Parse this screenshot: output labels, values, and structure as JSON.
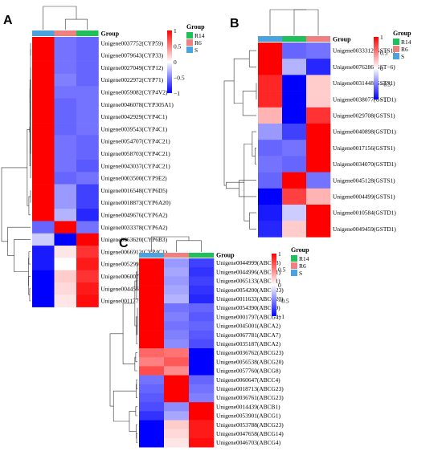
{
  "legend_title": "Group",
  "groups": [
    {
      "name": "R14",
      "color": "#1fbf5a"
    },
    {
      "name": "R6",
      "color": "#f08080"
    },
    {
      "name": "S",
      "color": "#4aa3df"
    }
  ],
  "colorbar": {
    "ticks": [
      "1",
      "0.5",
      "0",
      "−0.5",
      "−1"
    ],
    "max": 1,
    "min": -1,
    "high_color": "#ff0000",
    "mid_color": "#ffffff",
    "low_color": "#0000ff"
  },
  "chart_data": [
    {
      "type": "heatmap",
      "panel": "A",
      "columns": [
        "S",
        "R6",
        "R14"
      ],
      "rows": [
        "Unigene0037752(CYP59)",
        "Unigene0079643(CYP33)",
        "Unigene0027049(CYP12)",
        "Unigene0022972(CYP71)",
        "Unigene0059082(CYP4V2)",
        "Unigene0046078(CYP305A1)",
        "Unigene0042929(CYP4C1)",
        "Unigene0039543(CYP4C1)",
        "Unigene0054707(CYP4C21)",
        "Unigene0058703(CYP4C21)",
        "Unigene0043037(CYP4C21)",
        "Unigene0003500(CYP9E2)",
        "Unigene0016548(CYP6D5)",
        "Unigene0018873(CYP6A20)",
        "Unigene0049676(CYP6A2)",
        "Unigene0033378(CYP6A2)",
        "Unigene0063620(CYP6B3)",
        "Unigene0066912(CYP4C1)",
        "Unigene0052991(CYP6A14)",
        "Unigene0060071(CYP315A1)",
        "Unigene0044560(CYP6A13)",
        "Unigene0011777(CYP4C1)"
      ],
      "values": [
        [
          1.15,
          -0.55,
          -0.6
        ],
        [
          1.15,
          -0.55,
          -0.6
        ],
        [
          1.15,
          -0.55,
          -0.6
        ],
        [
          1.15,
          -0.5,
          -0.6
        ],
        [
          1.15,
          -0.55,
          -0.55
        ],
        [
          1.15,
          -0.6,
          -0.55
        ],
        [
          1.15,
          -0.6,
          -0.55
        ],
        [
          1.15,
          -0.6,
          -0.55
        ],
        [
          1.15,
          -0.55,
          -0.6
        ],
        [
          1.15,
          -0.55,
          -0.6
        ],
        [
          1.15,
          -0.55,
          -0.65
        ],
        [
          1.15,
          -0.6,
          -0.55
        ],
        [
          1.15,
          -0.4,
          -0.75
        ],
        [
          1.15,
          -0.4,
          -0.75
        ],
        [
          1.15,
          -0.3,
          -0.85
        ],
        [
          -0.6,
          1.15,
          -0.55
        ],
        [
          -0.2,
          -1.0,
          1.2
        ],
        [
          -0.9,
          0.1,
          0.8
        ],
        [
          -0.9,
          0.0,
          0.9
        ],
        [
          -1.0,
          0.2,
          0.8
        ],
        [
          -1.05,
          0.15,
          0.9
        ],
        [
          -1.05,
          0.1,
          0.95
        ]
      ]
    },
    {
      "type": "heatmap",
      "panel": "B",
      "columns": [
        "S",
        "R14",
        "R6"
      ],
      "rows": [
        "Unigene0033312(GSTS1)",
        "Unigene0076286(GST−6)",
        "Unigene0031448(GSTS1)",
        "Unigene0038077(GSTD1)",
        "Unigene0029708(GSTS1)",
        "Unigene0040898(GSTD1)",
        "Unigene0017156(GSTS1)",
        "Unigene0034070(GSTD1)",
        "Unigene0045128(GSTS1)",
        "Unigene0004499(GSTS1)",
        "Unigene0010584(GSTD1)",
        "Unigene0049459(GSTD1)"
      ],
      "values": [
        [
          1.15,
          -0.6,
          -0.55
        ],
        [
          1.15,
          -0.3,
          -0.85
        ],
        [
          0.85,
          -1.05,
          0.2
        ],
        [
          0.85,
          -1.05,
          0.2
        ],
        [
          0.3,
          -1.1,
          0.8
        ],
        [
          -0.4,
          -0.75,
          1.15
        ],
        [
          -0.6,
          -0.55,
          1.15
        ],
        [
          -0.55,
          -0.6,
          1.15
        ],
        [
          -0.6,
          1.15,
          -0.55
        ],
        [
          -1.05,
          0.75,
          0.3
        ],
        [
          -0.9,
          -0.2,
          1.1
        ],
        [
          -0.85,
          0.2,
          1.0
        ]
      ]
    },
    {
      "type": "heatmap",
      "panel": "C",
      "columns": [
        "S",
        "R6",
        "R14"
      ],
      "rows": [
        "Unigene0044999(ABCA3)",
        "Unigene0044996(ABCA1)",
        "Unigene0065133(ABCB1)",
        "Unigene0054200(ABCG23)",
        "Unigene0011633(ABCG20)",
        "Unigene0054390(ABCC9)",
        "Unigene0001797(ABCG4)",
        "Unigene0045001(ABCA2)",
        "Unigene0067781(ABCA7)",
        "Unigene0035187(ABCA2)",
        "Unigene0036762(ABCG23)",
        "Unigene0056538(ABCG20)",
        "Unigene0057760(ABCG8)",
        "Unigene0060647(ABCC4)",
        "Unigene0018713(ABCG23)",
        "Unigene0036761(ABCG23)",
        "Unigene0014439(ABCB1)",
        "Unigene0053901(ABCG1)",
        "Unigene0053788(ABCG23)",
        "Unigene0047658(ABCG14)",
        "Unigene0046703(ABCG4)"
      ],
      "values": [
        [
          1.15,
          -0.4,
          -0.75
        ],
        [
          1.15,
          -0.35,
          -0.8
        ],
        [
          1.15,
          -0.4,
          -0.75
        ],
        [
          1.15,
          -0.35,
          -0.8
        ],
        [
          1.15,
          -0.3,
          -0.85
        ],
        [
          1.15,
          -0.55,
          -0.6
        ],
        [
          1.15,
          -0.5,
          -0.65
        ],
        [
          1.15,
          -0.55,
          -0.6
        ],
        [
          1.15,
          -0.5,
          -0.65
        ],
        [
          1.15,
          -0.45,
          -0.7
        ],
        [
          0.6,
          0.55,
          -1.15
        ],
        [
          0.5,
          0.65,
          -1.15
        ],
        [
          0.7,
          0.45,
          -1.15
        ],
        [
          -0.55,
          1.15,
          -0.6
        ],
        [
          -0.6,
          1.15,
          -0.55
        ],
        [
          -0.65,
          1.15,
          -0.5
        ],
        [
          -0.7,
          -0.45,
          1.15
        ],
        [
          -0.8,
          -0.35,
          1.15
        ],
        [
          -1.1,
          0.2,
          0.9
        ],
        [
          -1.05,
          0.15,
          0.9
        ],
        [
          -1.05,
          0.1,
          0.95
        ]
      ]
    }
  ]
}
